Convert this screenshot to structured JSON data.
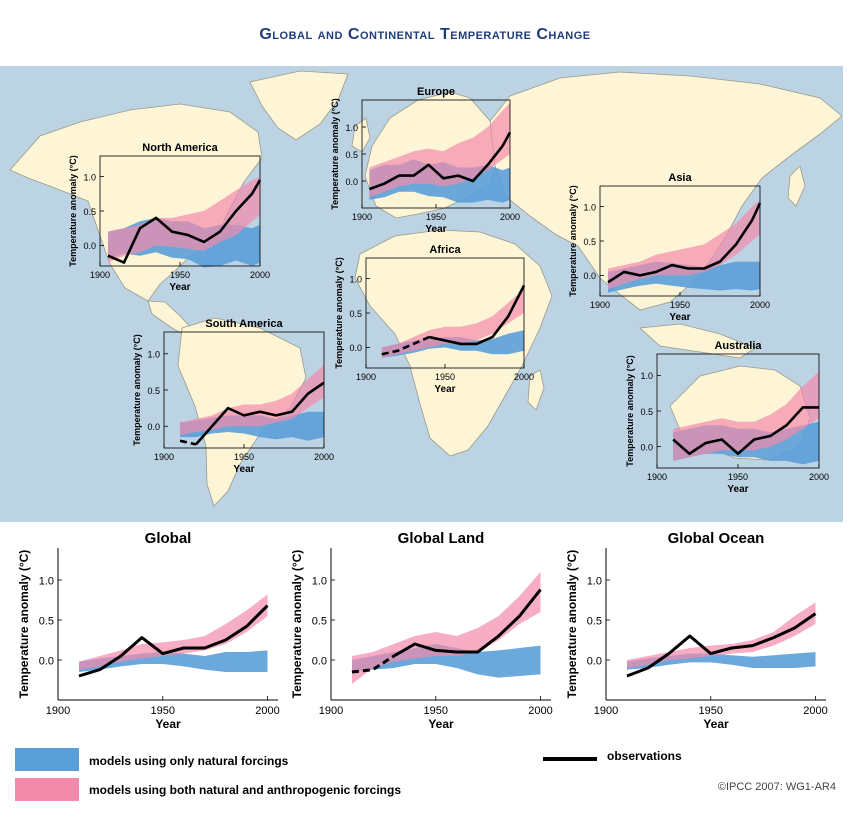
{
  "title": "Global and Continental Temperature Change",
  "copyright": "©IPCC  2007: WG1-AR4",
  "colors": {
    "natural": "#5b9fd8",
    "anthropogenic": "#f48aab",
    "overlap": "#8a64a8",
    "observations": "#000000",
    "ocean": "#bcd3e4",
    "land": "#fdf5d6"
  },
  "legend": {
    "natural": "models using only natural forcings",
    "both": "models using both natural and anthropogenic forcings",
    "observations": "observations"
  },
  "chart_data": [
    {
      "id": "north-america",
      "type": "area",
      "title": "North America",
      "xlabel": "Year",
      "ylabel": "Temperature anomaly (°C)",
      "xlim": [
        1900,
        2000
      ],
      "ylim": [
        -0.3,
        1.3
      ],
      "xticks": [
        "1900",
        "1950",
        "2000"
      ],
      "yticks": [
        "0.0",
        "0.5",
        "1.0"
      ],
      "x": [
        1905,
        1915,
        1925,
        1935,
        1945,
        1955,
        1965,
        1975,
        1985,
        1995,
        2000
      ],
      "natural": {
        "low": [
          -0.2,
          -0.12,
          -0.15,
          -0.1,
          -0.18,
          -0.2,
          -0.32,
          -0.3,
          -0.22,
          -0.3,
          -0.25
        ],
        "high": [
          0.2,
          0.25,
          0.35,
          0.4,
          0.35,
          0.35,
          0.25,
          0.3,
          0.3,
          0.25,
          0.3
        ]
      },
      "anthropogenic": {
        "low": [
          -0.25,
          -0.15,
          -0.1,
          0.0,
          -0.02,
          -0.05,
          -0.08,
          0.05,
          0.15,
          0.35,
          0.45
        ],
        "high": [
          0.2,
          0.25,
          0.3,
          0.4,
          0.4,
          0.45,
          0.5,
          0.65,
          0.8,
          0.95,
          1.0
        ]
      },
      "observations": {
        "x": [
          1905,
          1915,
          1925,
          1935,
          1945,
          1955,
          1965,
          1975,
          1985,
          1995,
          2000
        ],
        "y": [
          -0.15,
          -0.25,
          0.25,
          0.4,
          0.2,
          0.15,
          0.05,
          0.2,
          0.5,
          0.75,
          0.95
        ]
      }
    },
    {
      "id": "europe",
      "type": "area",
      "title": "Europe",
      "xlabel": "Year",
      "ylabel": "Temperature anomaly (°C)",
      "xlim": [
        1900,
        2000
      ],
      "ylim": [
        -0.5,
        1.5
      ],
      "xticks": [
        "1900",
        "1950",
        "2000"
      ],
      "yticks": [
        "0.0",
        "0.5",
        "1.0"
      ],
      "x": [
        1905,
        1915,
        1925,
        1935,
        1945,
        1955,
        1965,
        1975,
        1985,
        1995,
        2000
      ],
      "natural": {
        "low": [
          -0.35,
          -0.3,
          -0.2,
          -0.2,
          -0.28,
          -0.3,
          -0.4,
          -0.4,
          -0.35,
          -0.4,
          -0.35
        ],
        "high": [
          0.2,
          0.3,
          0.3,
          0.4,
          0.3,
          0.35,
          0.25,
          0.25,
          0.3,
          0.2,
          0.25
        ]
      },
      "anthropogenic": {
        "low": [
          -0.3,
          -0.2,
          -0.1,
          -0.05,
          -0.05,
          -0.1,
          -0.05,
          0.05,
          0.2,
          0.4,
          0.5
        ],
        "high": [
          0.25,
          0.35,
          0.45,
          0.55,
          0.6,
          0.55,
          0.7,
          0.8,
          1.0,
          1.3,
          1.45
        ]
      },
      "observations": {
        "x": [
          1905,
          1915,
          1925,
          1935,
          1945,
          1955,
          1965,
          1975,
          1985,
          1995,
          2000
        ],
        "y": [
          -0.15,
          -0.05,
          0.1,
          0.1,
          0.3,
          0.05,
          0.1,
          0.0,
          0.3,
          0.65,
          0.9
        ]
      }
    },
    {
      "id": "asia",
      "type": "area",
      "title": "Asia",
      "xlabel": "Year",
      "ylabel": "Temperature anomaly (°C)",
      "xlim": [
        1900,
        2000
      ],
      "ylim": [
        -0.3,
        1.3
      ],
      "xticks": [
        "1900",
        "1950",
        "2000"
      ],
      "yticks": [
        "0.0",
        "0.5",
        "1.0"
      ],
      "x": [
        1905,
        1915,
        1925,
        1935,
        1945,
        1955,
        1965,
        1975,
        1985,
        1995,
        2000
      ],
      "natural": {
        "low": [
          -0.25,
          -0.2,
          -0.15,
          -0.12,
          -0.15,
          -0.18,
          -0.2,
          -0.22,
          -0.2,
          -0.22,
          -0.2
        ],
        "high": [
          0.05,
          0.1,
          0.15,
          0.2,
          0.18,
          0.15,
          0.12,
          0.15,
          0.2,
          0.2,
          0.2
        ]
      },
      "anthropogenic": {
        "low": [
          -0.2,
          -0.12,
          -0.05,
          0.0,
          0.0,
          0.0,
          0.05,
          0.15,
          0.3,
          0.5,
          0.6
        ],
        "high": [
          0.1,
          0.15,
          0.2,
          0.3,
          0.35,
          0.4,
          0.45,
          0.6,
          0.75,
          1.0,
          1.1
        ]
      },
      "observations": {
        "x": [
          1905,
          1915,
          1925,
          1935,
          1945,
          1955,
          1965,
          1975,
          1985,
          1995,
          2000
        ],
        "y": [
          -0.1,
          0.05,
          0.0,
          0.05,
          0.15,
          0.1,
          0.1,
          0.2,
          0.45,
          0.8,
          1.05
        ]
      }
    },
    {
      "id": "africa",
      "type": "area",
      "title": "Africa",
      "xlabel": "Year",
      "ylabel": "Temperature anomaly (°C)",
      "xlim": [
        1900,
        2000
      ],
      "ylim": [
        -0.3,
        1.3
      ],
      "xticks": [
        "1900",
        "1950",
        "2000"
      ],
      "yticks": [
        "0.0",
        "0.5",
        "1.0"
      ],
      "x": [
        1910,
        1920,
        1930,
        1940,
        1950,
        1960,
        1970,
        1980,
        1990,
        2000
      ],
      "natural": {
        "low": [
          -0.15,
          -0.12,
          -0.08,
          -0.02,
          0.0,
          -0.05,
          -0.05,
          -0.1,
          -0.1,
          -0.05
        ],
        "high": [
          0.0,
          0.05,
          0.1,
          0.12,
          0.15,
          0.15,
          0.1,
          0.12,
          0.2,
          0.25
        ]
      },
      "anthropogenic": {
        "low": [
          -0.15,
          -0.1,
          -0.05,
          0.0,
          0.05,
          0.05,
          0.1,
          0.2,
          0.35,
          0.5
        ],
        "high": [
          0.0,
          0.05,
          0.15,
          0.25,
          0.3,
          0.3,
          0.35,
          0.45,
          0.65,
          0.85
        ]
      },
      "observations": {
        "x": [
          1910,
          1920,
          1930,
          1940,
          1950,
          1960,
          1970,
          1980,
          1990,
          2000
        ],
        "y": [
          -0.1,
          -0.05,
          0.05,
          0.15,
          0.1,
          0.05,
          0.05,
          0.15,
          0.45,
          0.9
        ],
        "dashed_until": 1940
      }
    },
    {
      "id": "south-america",
      "type": "area",
      "title": "South America",
      "xlabel": "Year",
      "ylabel": "Temperature anomaly (°C)",
      "xlim": [
        1900,
        2000
      ],
      "ylim": [
        -0.3,
        1.3
      ],
      "xticks": [
        "1900",
        "1950",
        "2000"
      ],
      "yticks": [
        "0.0",
        "0.5",
        "1.0"
      ],
      "x": [
        1910,
        1920,
        1930,
        1940,
        1950,
        1960,
        1970,
        1980,
        1990,
        2000
      ],
      "natural": {
        "low": [
          -0.15,
          -0.15,
          -0.1,
          -0.08,
          -0.1,
          -0.15,
          -0.18,
          -0.15,
          -0.2,
          -0.15
        ],
        "high": [
          0.05,
          0.08,
          0.12,
          0.15,
          0.15,
          0.15,
          0.1,
          0.15,
          0.2,
          0.2
        ]
      },
      "anthropogenic": {
        "low": [
          -0.12,
          -0.08,
          -0.05,
          0.0,
          0.0,
          0.0,
          0.05,
          0.1,
          0.25,
          0.4
        ],
        "high": [
          0.05,
          0.1,
          0.15,
          0.25,
          0.3,
          0.3,
          0.35,
          0.45,
          0.65,
          0.85
        ]
      },
      "observations": {
        "x": [
          1910,
          1920,
          1930,
          1940,
          1950,
          1960,
          1970,
          1980,
          1990,
          2000
        ],
        "y": [
          -0.2,
          -0.25,
          0.0,
          0.25,
          0.15,
          0.2,
          0.15,
          0.2,
          0.45,
          0.6
        ],
        "dashed_until": 1920
      }
    },
    {
      "id": "australia",
      "type": "area",
      "title": "Australia",
      "xlabel": "Year",
      "ylabel": "Temperature anomaly (°C)",
      "xlim": [
        1900,
        2000
      ],
      "ylim": [
        -0.3,
        1.3
      ],
      "xticks": [
        "1900",
        "1950",
        "2000"
      ],
      "yticks": [
        "0.0",
        "0.5",
        "1.0"
      ],
      "x": [
        1910,
        1920,
        1930,
        1940,
        1950,
        1960,
        1970,
        1980,
        1990,
        2000
      ],
      "natural": {
        "low": [
          -0.2,
          -0.15,
          -0.1,
          -0.1,
          -0.15,
          -0.15,
          -0.2,
          -0.2,
          -0.25,
          -0.2
        ],
        "high": [
          0.2,
          0.25,
          0.3,
          0.3,
          0.25,
          0.25,
          0.2,
          0.25,
          0.3,
          0.35
        ]
      },
      "anthropogenic": {
        "low": [
          -0.2,
          -0.15,
          -0.1,
          -0.05,
          -0.05,
          -0.05,
          0.0,
          0.1,
          0.25,
          0.4
        ],
        "high": [
          0.25,
          0.3,
          0.35,
          0.4,
          0.35,
          0.35,
          0.45,
          0.6,
          0.85,
          1.05
        ]
      },
      "observations": {
        "x": [
          1910,
          1920,
          1930,
          1940,
          1950,
          1960,
          1970,
          1980,
          1990,
          2000
        ],
        "y": [
          0.1,
          -0.1,
          0.05,
          0.1,
          -0.1,
          0.1,
          0.15,
          0.3,
          0.55,
          0.55
        ]
      }
    },
    {
      "id": "global",
      "type": "area",
      "title": "Global",
      "xlabel": "Year",
      "ylabel": "Temperature anomaly (°C)",
      "xlim": [
        1900,
        2005
      ],
      "ylim": [
        -0.5,
        1.4
      ],
      "xticks": [
        "1900",
        "1950",
        "2000"
      ],
      "yticks": [
        "0.0",
        "0.5",
        "1.0"
      ],
      "x": [
        1910,
        1920,
        1930,
        1940,
        1950,
        1960,
        1970,
        1980,
        1990,
        2000
      ],
      "natural": {
        "low": [
          -0.15,
          -0.12,
          -0.08,
          -0.05,
          -0.05,
          -0.08,
          -0.12,
          -0.15,
          -0.15,
          -0.15
        ],
        "high": [
          -0.02,
          0.02,
          0.05,
          0.08,
          0.1,
          0.08,
          0.05,
          0.1,
          0.1,
          0.12
        ]
      },
      "anthropogenic": {
        "low": [
          -0.12,
          -0.08,
          -0.02,
          0.02,
          0.05,
          0.08,
          0.12,
          0.2,
          0.35,
          0.55
        ],
        "high": [
          -0.02,
          0.05,
          0.12,
          0.2,
          0.22,
          0.25,
          0.3,
          0.45,
          0.62,
          0.82
        ]
      },
      "observations": {
        "x": [
          1910,
          1920,
          1930,
          1940,
          1950,
          1960,
          1970,
          1980,
          1990,
          2000
        ],
        "y": [
          -0.2,
          -0.12,
          0.05,
          0.28,
          0.08,
          0.15,
          0.15,
          0.25,
          0.42,
          0.68
        ]
      }
    },
    {
      "id": "global-land",
      "type": "area",
      "title": "Global Land",
      "xlabel": "Year",
      "ylabel": "Temperature anomaly (°C)",
      "xlim": [
        1900,
        2005
      ],
      "ylim": [
        -0.5,
        1.4
      ],
      "xticks": [
        "1900",
        "1950",
        "2000"
      ],
      "yticks": [
        "0.0",
        "0.5",
        "1.0"
      ],
      "x": [
        1910,
        1920,
        1930,
        1940,
        1950,
        1960,
        1970,
        1980,
        1990,
        2000
      ],
      "natural": {
        "low": [
          -0.15,
          -0.12,
          -0.1,
          -0.05,
          -0.05,
          -0.1,
          -0.18,
          -0.22,
          -0.2,
          -0.18
        ],
        "high": [
          0.0,
          0.05,
          0.1,
          0.15,
          0.2,
          0.15,
          0.1,
          0.12,
          0.15,
          0.18
        ]
      },
      "anthropogenic": {
        "low": [
          -0.3,
          -0.1,
          -0.02,
          0.02,
          0.05,
          0.05,
          0.1,
          0.25,
          0.45,
          0.6
        ],
        "high": [
          0.05,
          0.1,
          0.2,
          0.3,
          0.35,
          0.3,
          0.4,
          0.55,
          0.8,
          1.1
        ]
      },
      "observations": {
        "x": [
          1910,
          1920,
          1930,
          1940,
          1950,
          1960,
          1970,
          1980,
          1990,
          2000
        ],
        "y": [
          -0.15,
          -0.12,
          0.05,
          0.2,
          0.12,
          0.1,
          0.1,
          0.3,
          0.55,
          0.88
        ],
        "dashed_until": 1930
      }
    },
    {
      "id": "global-ocean",
      "type": "area",
      "title": "Global Ocean",
      "xlabel": "Year",
      "ylabel": "Temperature anomaly (°C)",
      "xlim": [
        1900,
        2005
      ],
      "ylim": [
        -0.5,
        1.4
      ],
      "xticks": [
        "1900",
        "1950",
        "2000"
      ],
      "yticks": [
        "0.0",
        "0.5",
        "1.0"
      ],
      "x": [
        1910,
        1920,
        1930,
        1940,
        1950,
        1960,
        1970,
        1980,
        1990,
        2000
      ],
      "natural": {
        "low": [
          -0.12,
          -0.1,
          -0.06,
          -0.03,
          -0.03,
          -0.06,
          -0.1,
          -0.1,
          -0.1,
          -0.08
        ],
        "high": [
          -0.02,
          0.02,
          0.05,
          0.08,
          0.08,
          0.06,
          0.04,
          0.06,
          0.08,
          0.1
        ]
      },
      "anthropogenic": {
        "low": [
          -0.1,
          -0.06,
          0.0,
          0.02,
          0.05,
          0.08,
          0.1,
          0.18,
          0.3,
          0.45
        ],
        "high": [
          0.0,
          0.05,
          0.1,
          0.15,
          0.18,
          0.2,
          0.25,
          0.35,
          0.55,
          0.72
        ]
      },
      "observations": {
        "x": [
          1910,
          1920,
          1930,
          1940,
          1950,
          1960,
          1970,
          1980,
          1990,
          2000
        ],
        "y": [
          -0.2,
          -0.1,
          0.08,
          0.3,
          0.08,
          0.15,
          0.18,
          0.28,
          0.4,
          0.58
        ]
      }
    }
  ]
}
